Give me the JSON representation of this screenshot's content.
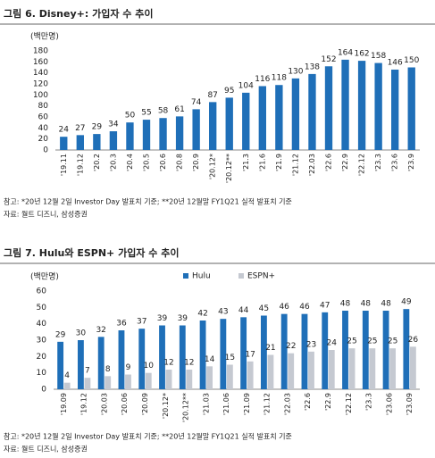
{
  "chart_data": [
    {
      "type": "bar",
      "title": "그림 6. Disney+: 가입자 수 추이",
      "y_label": "(백만명)",
      "categories": [
        "'19.11",
        "'19.12",
        "'20.2",
        "'20.3",
        "'20.4",
        "'20.5",
        "'20.6",
        "'20.8",
        "'20.9",
        "'20.12*",
        "'20.12**",
        "'21.3",
        "'21.6",
        "'21.9",
        "'21.12",
        "'22.03",
        "'22.6",
        "'22.9",
        "'22.12",
        "'23.3",
        "'23.6",
        "'23.9"
      ],
      "series": [
        {
          "color": "#1f6fb8",
          "values": [
            24,
            27,
            29,
            34,
            50,
            55,
            58,
            61,
            74,
            87,
            95,
            104,
            116,
            118,
            130,
            138,
            152,
            164,
            162,
            158,
            146,
            150
          ]
        }
      ],
      "ylim": [
        0,
        180
      ],
      "yticks": [
        0,
        20,
        40,
        60,
        80,
        100,
        120,
        140,
        160,
        180
      ],
      "grid": false,
      "note": "참고: *20년 12월 2일 Investor Day 발표치 기준; **20년 12월말 FY1Q21 실적 발표치 기준",
      "source": "자료: 월트 디즈니, 삼성증권"
    },
    {
      "type": "bar",
      "title": "그림 7. Hulu와 ESPN+ 가입자 수 추이",
      "y_label": "(백만명)",
      "categories": [
        "'19.09",
        "'19.12",
        "'20.03",
        "'20.06",
        "'20.09",
        "'20.12*",
        "'20.12**",
        "'21.03",
        "'21.06",
        "'21.09",
        "'21.12",
        "'22.03",
        "'22.6",
        "'22.9",
        "'22.12",
        "'23.3",
        "'23.06",
        "'23.09"
      ],
      "series": [
        {
          "name": "Hulu",
          "color": "#1f6fb8",
          "values": [
            29,
            30,
            32,
            36,
            37,
            39,
            39,
            42,
            43,
            44,
            45,
            46,
            46,
            47,
            48,
            48,
            48,
            49
          ]
        },
        {
          "name": "ESPN+",
          "color": "#c5c9d1",
          "values": [
            4,
            7,
            8,
            9,
            10,
            12,
            12,
            14,
            15,
            17,
            21,
            22,
            23,
            24,
            25,
            25,
            25,
            26
          ]
        }
      ],
      "ylim": [
        0,
        60
      ],
      "yticks": [
        0,
        10,
        20,
        30,
        40,
        50,
        60
      ],
      "grid": false,
      "legend": "top",
      "note": "참고: *20년 12월 2일 Investor Day 발표치 기준; **20년 12월말 FY1Q21 실적 발표치 기준",
      "source": "자료: 월트 디즈니, 삼성증권"
    }
  ]
}
